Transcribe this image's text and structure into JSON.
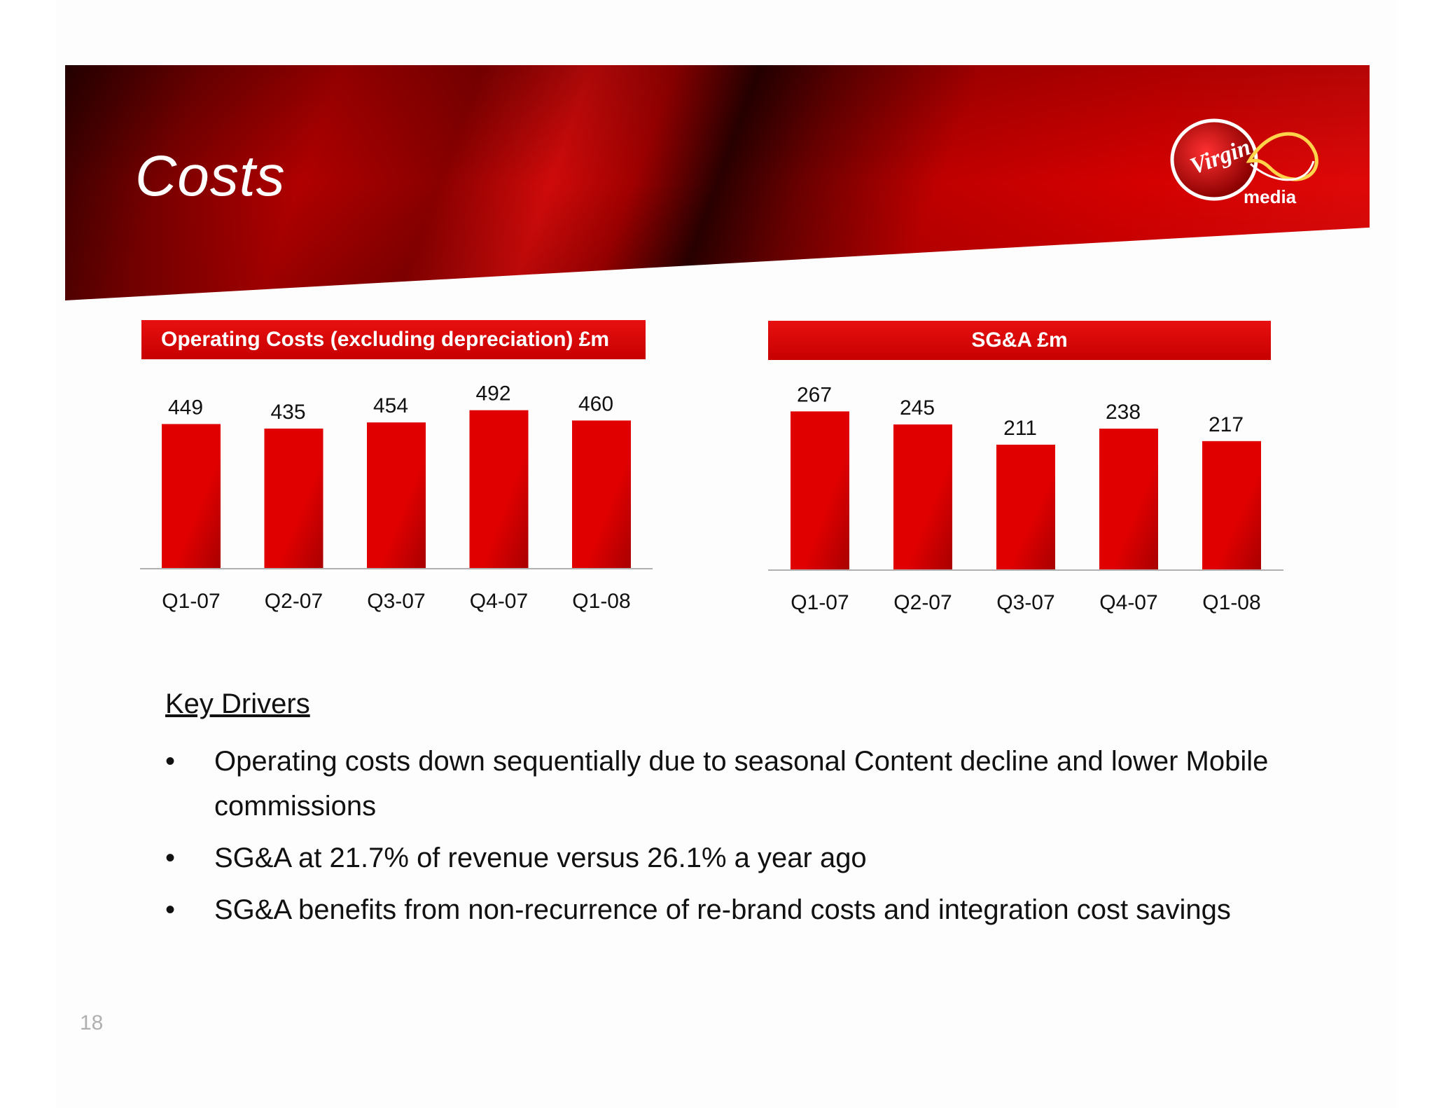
{
  "slide": {
    "title": "Costs",
    "page_number": "18"
  },
  "logo": {
    "brand_text": "Virgin",
    "sub_text": "media"
  },
  "colors": {
    "bar": "#e00000",
    "bar_dark": "#a80000",
    "title_bar": "#d40000",
    "axis": "#b0b0b0"
  },
  "chart_data": [
    {
      "type": "bar",
      "title": "Operating Costs (excluding depreciation) £m",
      "categories": [
        "Q1-07",
        "Q2-07",
        "Q3-07",
        "Q4-07",
        "Q1-08"
      ],
      "values": [
        449,
        435,
        454,
        492,
        460
      ],
      "data_labels": [
        "449",
        "435",
        "454",
        "492",
        "460"
      ],
      "ylim": [
        0,
        500
      ],
      "grid": false,
      "legend": "none"
    },
    {
      "type": "bar",
      "title": "SG&A £m",
      "categories": [
        "Q1-07",
        "Q2-07",
        "Q3-07",
        "Q4-07",
        "Q1-08"
      ],
      "values": [
        267,
        245,
        211,
        238,
        217
      ],
      "data_labels": [
        "267",
        "245",
        "211",
        "238",
        "217"
      ],
      "ylim": [
        0,
        271
      ],
      "grid": false,
      "legend": "none"
    }
  ],
  "key_drivers": {
    "heading": "Key Drivers",
    "bullet_symbol": "•",
    "items": [
      "Operating costs down sequentially due to seasonal Content decline and lower Mobile commissions",
      "SG&A at 21.7% of revenue versus 26.1% a year ago",
      "SG&A benefits from non-recurrence of re-brand costs and integration cost savings"
    ]
  }
}
